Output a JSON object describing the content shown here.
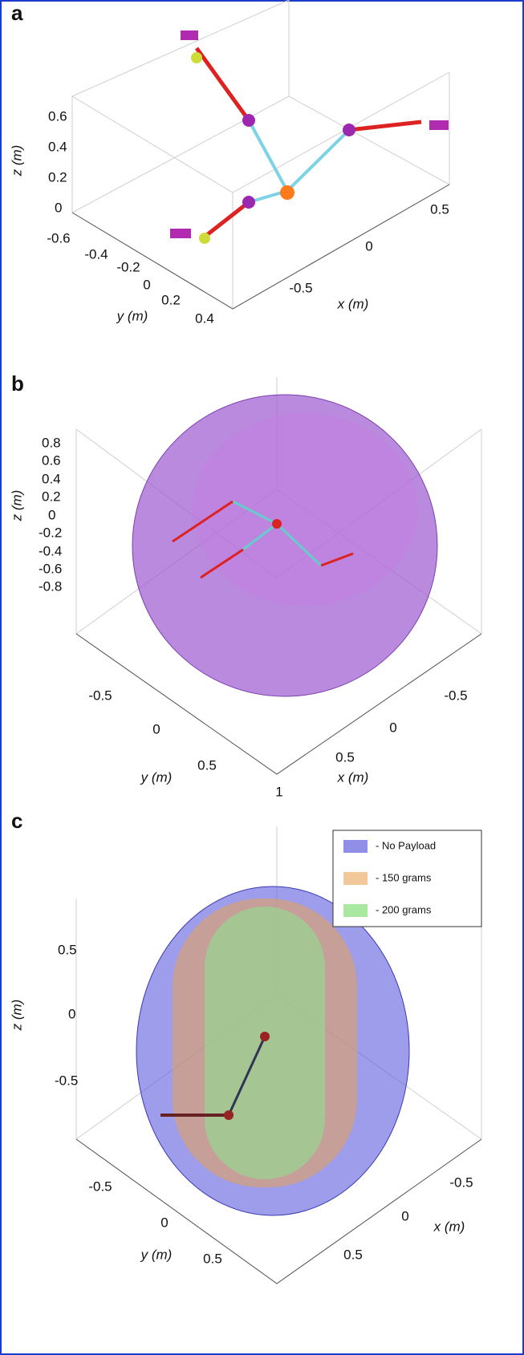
{
  "panels": [
    {
      "label": "a",
      "z_axis_label": "z (m)",
      "y_axis_label": "y (m)",
      "x_axis_label": "x (m)",
      "z_ticks": [
        "0.6",
        "0.4",
        "0.2",
        "0"
      ],
      "y_ticks": [
        "-0.6",
        "-0.4",
        "-0.2",
        "0",
        "0.2",
        "0.4"
      ],
      "x_ticks": [
        "-0.5",
        "0",
        "0.5"
      ]
    },
    {
      "label": "b",
      "z_axis_label": "z (m)",
      "y_axis_label": "y (m)",
      "x_axis_label": "x (m)",
      "z_ticks": [
        "0.8",
        "0.6",
        "0.4",
        "0.2",
        "0",
        "-0.2",
        "-0.4",
        "-0.6",
        "-0.8"
      ],
      "y_ticks": [
        "-0.5",
        "0",
        "0.5"
      ],
      "x_ticks": [
        "-0.5",
        "0",
        "0.5",
        "1"
      ]
    },
    {
      "label": "c",
      "z_axis_label": "z (m)",
      "y_axis_label": "y (m)",
      "x_axis_label": "x (m)",
      "z_ticks": [
        "0.5",
        "0",
        "-0.5"
      ],
      "y_ticks": [
        "-0.5",
        "0",
        "0.5"
      ],
      "x_ticks": [
        "-0.5",
        "0",
        "0.5"
      ],
      "legend": [
        "- No Payload",
        "- 150 grams",
        "- 200 grams"
      ]
    }
  ]
}
